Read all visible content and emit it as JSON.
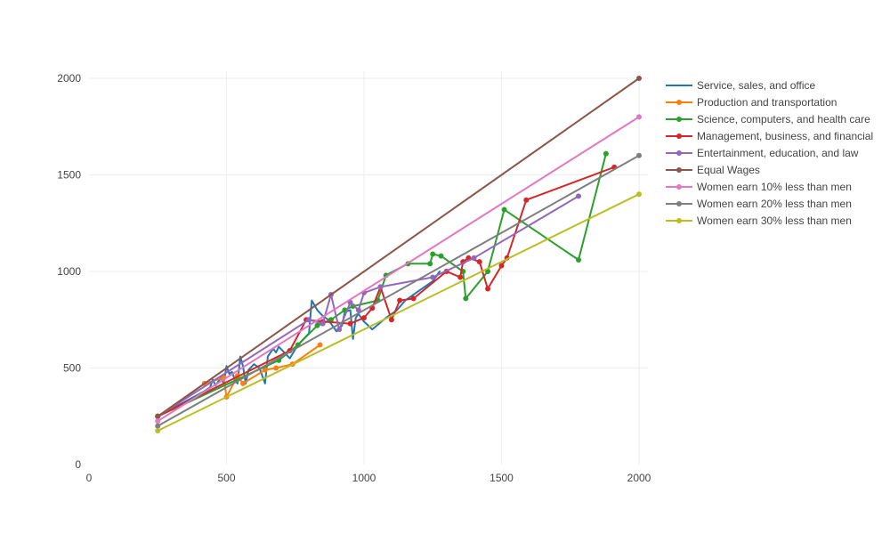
{
  "chart_data": {
    "type": "line",
    "title": "",
    "xlabel": "",
    "ylabel": "",
    "xlim": [
      0,
      2000
    ],
    "ylim": [
      0,
      2000
    ],
    "xticks": [
      0,
      500,
      1000,
      1500,
      2000
    ],
    "yticks": [
      0,
      500,
      1000,
      1500,
      2000
    ],
    "grid": true,
    "legend_position": "right",
    "series": [
      {
        "name": "Service, sales, and office",
        "color": "#1f77b4",
        "markers": false,
        "points": [
          [
            250,
            250
          ],
          [
            420,
            380
          ],
          [
            440,
            400
          ],
          [
            450,
            440
          ],
          [
            460,
            410
          ],
          [
            480,
            450
          ],
          [
            490,
            420
          ],
          [
            500,
            510
          ],
          [
            510,
            470
          ],
          [
            520,
            480
          ],
          [
            530,
            440
          ],
          [
            540,
            420
          ],
          [
            550,
            560
          ],
          [
            560,
            510
          ],
          [
            570,
            420
          ],
          [
            580,
            490
          ],
          [
            600,
            520
          ],
          [
            620,
            500
          ],
          [
            640,
            420
          ],
          [
            650,
            560
          ],
          [
            670,
            600
          ],
          [
            680,
            580
          ],
          [
            690,
            610
          ],
          [
            710,
            580
          ],
          [
            730,
            550
          ],
          [
            760,
            620
          ],
          [
            800,
            680
          ],
          [
            810,
            850
          ],
          [
            830,
            800
          ],
          [
            850,
            770
          ],
          [
            870,
            750
          ],
          [
            900,
            690
          ],
          [
            920,
            720
          ],
          [
            930,
            790
          ],
          [
            950,
            800
          ],
          [
            960,
            650
          ],
          [
            970,
            760
          ],
          [
            980,
            780
          ],
          [
            1000,
            740
          ],
          [
            1030,
            700
          ],
          [
            1080,
            760
          ],
          [
            1120,
            800
          ],
          [
            1150,
            850
          ],
          [
            1200,
            900
          ],
          [
            1250,
            950
          ],
          [
            1275,
            1000
          ]
        ]
      },
      {
        "name": "Production and transportation",
        "color": "#ff7f0e",
        "markers": true,
        "points": [
          [
            250,
            250
          ],
          [
            420,
            420
          ],
          [
            490,
            450
          ],
          [
            500,
            350
          ],
          [
            540,
            460
          ],
          [
            560,
            420
          ],
          [
            640,
            490
          ],
          [
            680,
            500
          ],
          [
            740,
            520
          ],
          [
            840,
            620
          ]
        ]
      },
      {
        "name": "Science, computers, and health care",
        "color": "#2ca02c",
        "markers": true,
        "points": [
          [
            250,
            250
          ],
          [
            690,
            540
          ],
          [
            760,
            620
          ],
          [
            830,
            720
          ],
          [
            880,
            750
          ],
          [
            930,
            800
          ],
          [
            960,
            820
          ],
          [
            1050,
            850
          ],
          [
            1080,
            980
          ],
          [
            1160,
            1040
          ],
          [
            1240,
            1040
          ],
          [
            1250,
            1090
          ],
          [
            1280,
            1080
          ],
          [
            1360,
            1000
          ],
          [
            1370,
            860
          ],
          [
            1450,
            1000
          ],
          [
            1510,
            1320
          ],
          [
            1780,
            1060
          ],
          [
            1880,
            1610
          ]
        ]
      },
      {
        "name": "Management, business, and financial",
        "color": "#d62728",
        "markers": true,
        "points": [
          [
            250,
            250
          ],
          [
            730,
            590
          ],
          [
            790,
            750
          ],
          [
            850,
            740
          ],
          [
            950,
            730
          ],
          [
            1000,
            760
          ],
          [
            1030,
            810
          ],
          [
            1060,
            920
          ],
          [
            1100,
            750
          ],
          [
            1130,
            850
          ],
          [
            1180,
            860
          ],
          [
            1300,
            1000
          ],
          [
            1350,
            970
          ],
          [
            1360,
            1050
          ],
          [
            1380,
            1070
          ],
          [
            1420,
            1050
          ],
          [
            1450,
            910
          ],
          [
            1500,
            1030
          ],
          [
            1520,
            1070
          ],
          [
            1590,
            1370
          ],
          [
            1910,
            1540
          ]
        ]
      },
      {
        "name": "Entertainment, education, and law",
        "color": "#9467bd",
        "markers": true,
        "points": [
          [
            250,
            250
          ],
          [
            800,
            750
          ],
          [
            850,
            730
          ],
          [
            880,
            880
          ],
          [
            910,
            700
          ],
          [
            950,
            840
          ],
          [
            980,
            800
          ],
          [
            1000,
            890
          ],
          [
            1060,
            920
          ],
          [
            1250,
            970
          ],
          [
            1400,
            1070
          ],
          [
            1780,
            1390
          ]
        ]
      },
      {
        "name": "Equal Wages",
        "color": "#8c564b",
        "markers": true,
        "points": [
          [
            250,
            250
          ],
          [
            2000,
            2000
          ]
        ]
      },
      {
        "name": "Women earn 10% less than men",
        "color": "#e377c2",
        "markers": true,
        "points": [
          [
            250,
            225
          ],
          [
            2000,
            1800
          ]
        ]
      },
      {
        "name": "Women earn 20% less than men",
        "color": "#7f7f7f",
        "markers": true,
        "points": [
          [
            250,
            200
          ],
          [
            2000,
            1600
          ]
        ]
      },
      {
        "name": "Women earn 30% less than men",
        "color": "#bcbd22",
        "markers": true,
        "points": [
          [
            250,
            175
          ],
          [
            2000,
            1400
          ]
        ]
      }
    ]
  }
}
